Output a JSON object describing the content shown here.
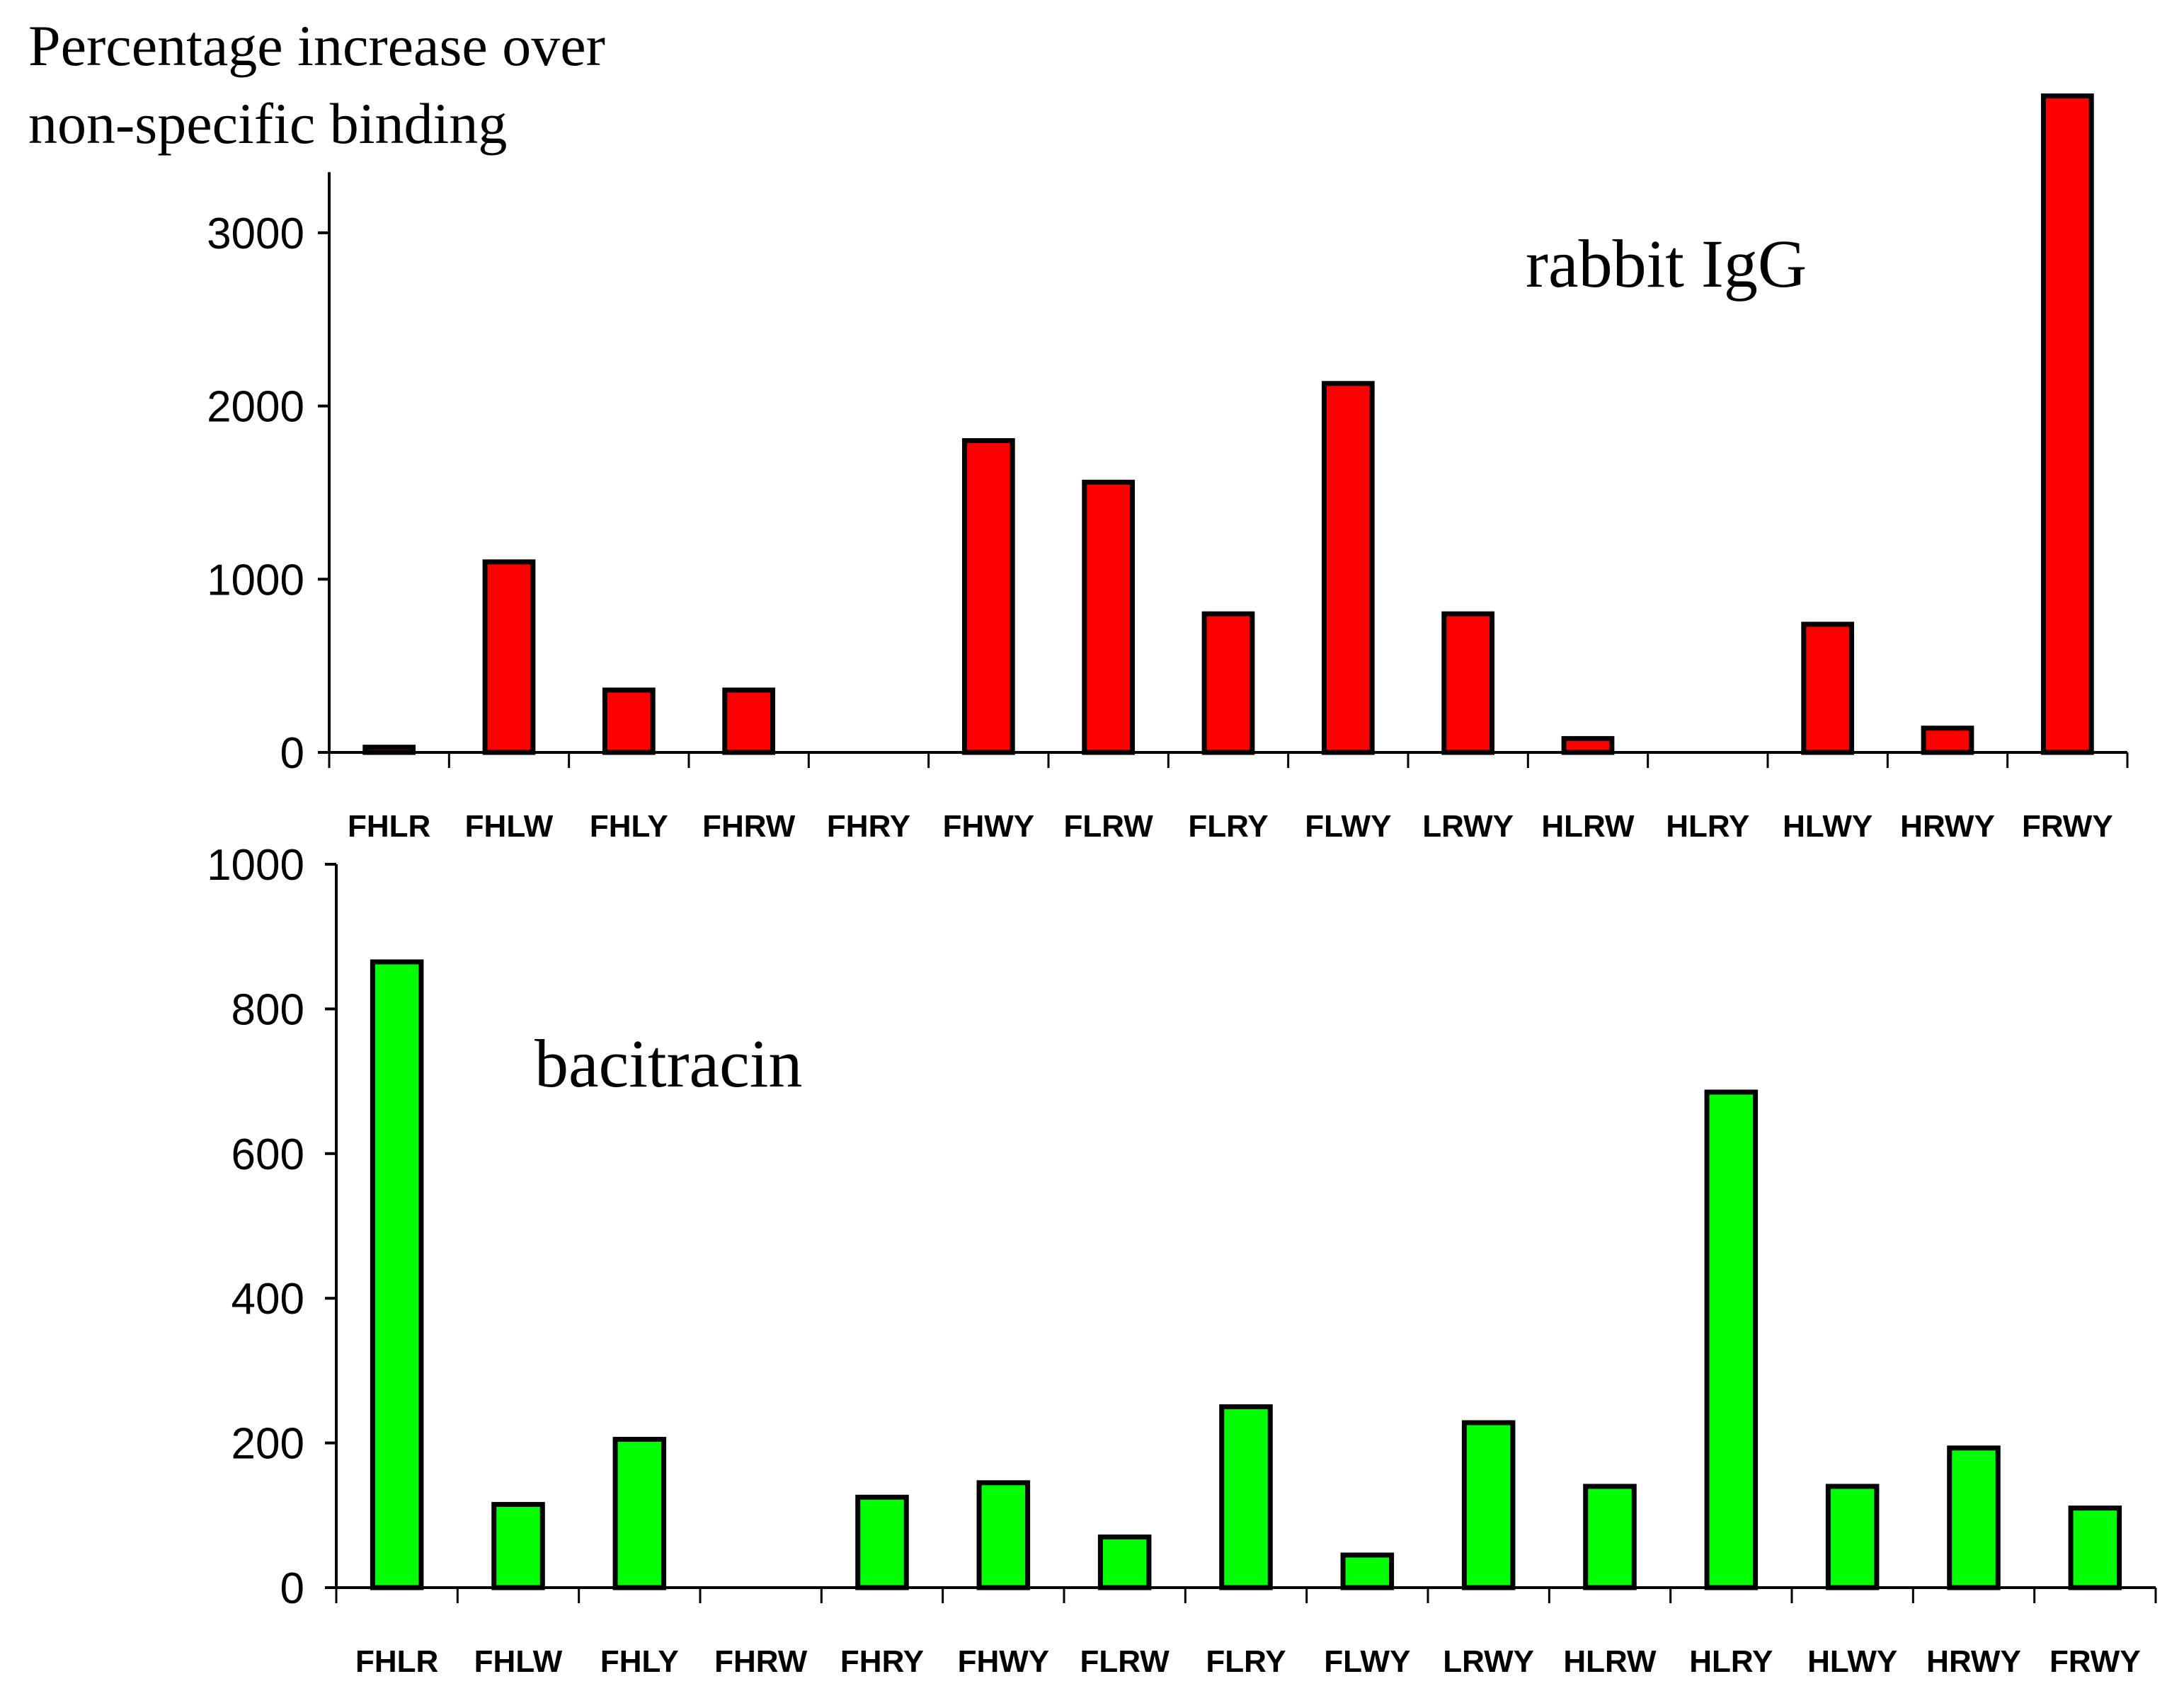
{
  "ylabel_lines": [
    "Percentage increase over",
    "non-specific binding"
  ],
  "chart_data": [
    {
      "type": "bar",
      "title": "rabbit IgG",
      "ylabel": "Percentage increase over non-specific binding",
      "xlabel": "",
      "categories": [
        "FHLR",
        "FHLW",
        "FHLY",
        "FHRW",
        "FHRY",
        "FHWY",
        "FLRW",
        "FLRY",
        "FLWY",
        "LRWY",
        "HLRW",
        "HLRY",
        "HLWY",
        "HRWY",
        "FRWY"
      ],
      "values": [
        30,
        1100,
        360,
        360,
        0,
        1800,
        1560,
        800,
        2130,
        800,
        80,
        0,
        740,
        140,
        3790
      ],
      "ylim": [
        0,
        3350
      ],
      "yticks": [
        0,
        1000,
        2000,
        3000
      ],
      "ytick_labels": [
        "0",
        "1000",
        "2000",
        "3000"
      ],
      "bar_color": "#ff0000",
      "grid": false
    },
    {
      "type": "bar",
      "title": "bacitracin",
      "ylabel": "Percentage increase over non-specific binding",
      "xlabel": "",
      "categories": [
        "FHLR",
        "FHLW",
        "FHLY",
        "FHRW",
        "FHRY",
        "FHWY",
        "FLRW",
        "FLRY",
        "FLWY",
        "LRWY",
        "HLRW",
        "HLRY",
        "HLWY",
        "HRWY",
        "FRWY"
      ],
      "values": [
        865,
        115,
        205,
        0,
        125,
        145,
        70,
        250,
        45,
        228,
        140,
        685,
        140,
        193,
        110
      ],
      "ylim": [
        0,
        1000
      ],
      "yticks": [
        0,
        200,
        400,
        600,
        800,
        1000
      ],
      "ytick_labels": [
        "0",
        "200",
        "400",
        "600",
        "800",
        "1000"
      ],
      "bar_color": "#00ff00",
      "grid": false
    }
  ]
}
